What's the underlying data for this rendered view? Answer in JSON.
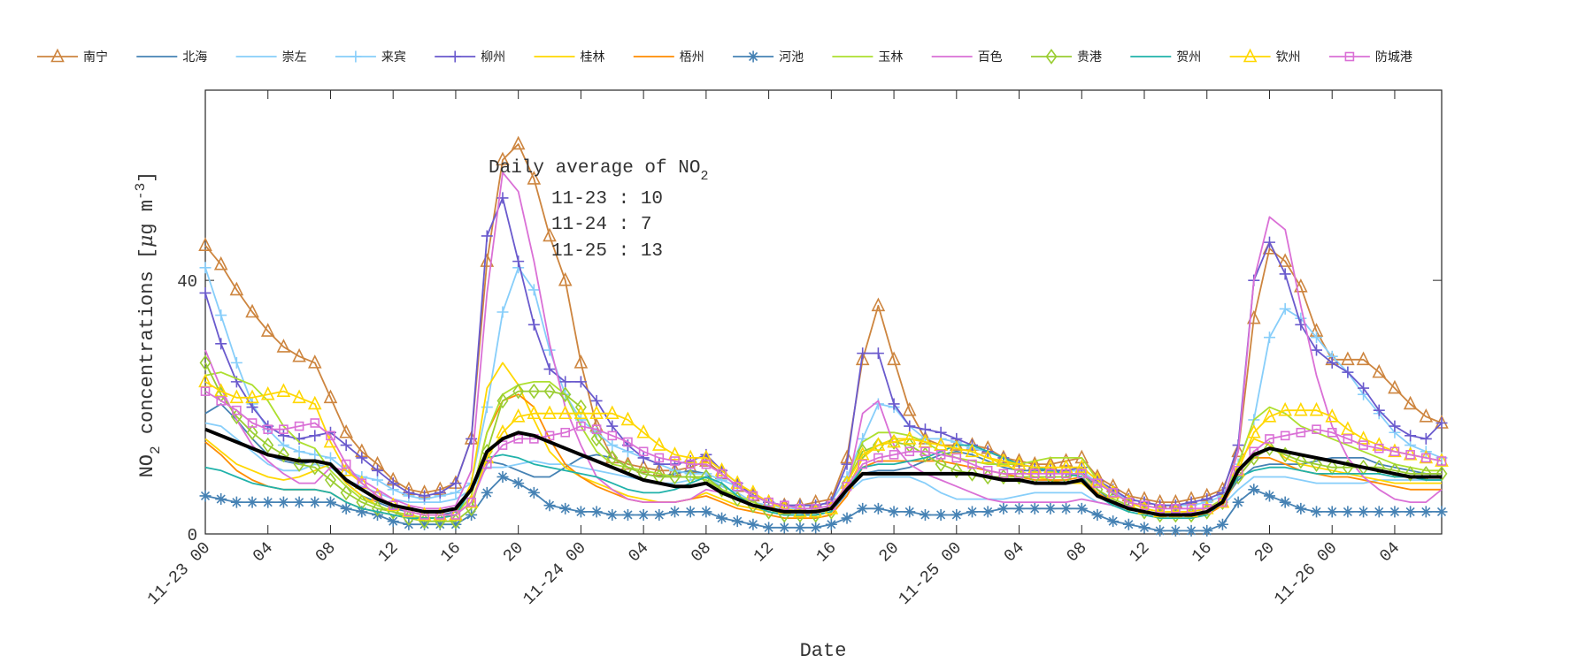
{
  "chart_data": {
    "type": "line",
    "xlabel": "Date",
    "ylabel": "NO2 concentrations [μg m-3]",
    "ylabel_parts": {
      "species": "NO",
      "sub": "2",
      "text": " concentrations [",
      "mu": "μ",
      "unit": "g m",
      "sup": "-3",
      "close": "]"
    },
    "ylim": [
      0,
      70
    ],
    "yticks": [
      0,
      40
    ],
    "x_start": "11-23 00",
    "x_step": "1 hour",
    "xlim_hours": [
      0,
      79
    ],
    "xtick_labels": [
      "11-23 00",
      "04",
      "08",
      "12",
      "16",
      "20",
      "11-24 00",
      "04",
      "08",
      "12",
      "16",
      "20",
      "11-25 00",
      "04",
      "08",
      "12",
      "16",
      "20",
      "11-26 00",
      "04"
    ],
    "grid": false,
    "legend_placement": "top",
    "annotation": {
      "title": "Daily average of NO",
      "title_sub": "2",
      "lines": [
        "11-23 : 10",
        "11-24 : 7",
        "11-25 : 13"
      ]
    },
    "series": [
      {
        "name": "南宁",
        "color": "#CD853F",
        "marker": "triangle",
        "values": [
          45.5,
          42.5,
          38.5,
          35,
          32,
          29.5,
          28,
          27,
          21.5,
          16,
          13,
          11,
          8.5,
          7,
          6.5,
          7,
          8,
          15,
          43,
          59,
          61.5,
          56,
          47,
          40,
          27,
          17,
          12,
          11,
          10.5,
          10,
          10,
          10.5,
          11.5,
          9.5,
          7.5,
          6,
          5,
          4.5,
          4.5,
          5,
          5.5,
          12,
          27.5,
          36,
          27.5,
          19.5,
          15,
          14,
          14,
          14,
          13.5,
          12,
          11.5,
          11,
          11,
          11.5,
          12,
          9,
          7.5,
          6,
          5.5,
          5,
          5,
          5.5,
          6,
          7,
          13,
          34,
          45,
          43,
          39,
          32,
          27.5,
          27.5,
          27.5,
          25.5,
          23,
          20.5,
          18.5,
          17.5
        ]
      },
      {
        "name": "北海",
        "color": "#4682B4",
        "marker": "none",
        "values": [
          19,
          20.5,
          18,
          15,
          12.5,
          11.5,
          11,
          11.5,
          11,
          8,
          6,
          5,
          4,
          3.5,
          3,
          3,
          3.5,
          7,
          11.5,
          11,
          10,
          9,
          9,
          10.5,
          12,
          12.5,
          12,
          10.5,
          9.5,
          9,
          9.5,
          10,
          9.5,
          7,
          5.5,
          4.5,
          3.5,
          3,
          3,
          3,
          3.5,
          6.5,
          9.5,
          10,
          10,
          10.5,
          11.5,
          12.5,
          13,
          12.5,
          11.5,
          10.5,
          10,
          10,
          10,
          10,
          10,
          7,
          5,
          4,
          3.5,
          3,
          3,
          3,
          3.5,
          5,
          8.5,
          10.5,
          11,
          11,
          11,
          11.5,
          12,
          12,
          12,
          11,
          10.5,
          10,
          9.5,
          9.5
        ]
      },
      {
        "name": "崇左",
        "color": "#87CEFA",
        "marker": "none",
        "values": [
          17.5,
          17,
          15,
          13,
          11,
          10,
          10,
          11,
          10.5,
          8.5,
          7.5,
          6.5,
          5.5,
          5,
          5,
          5,
          5.5,
          7,
          10.5,
          10.5,
          11,
          11.5,
          11,
          11,
          10.5,
          10,
          9.5,
          9,
          8.5,
          8,
          8,
          8.5,
          9,
          7.5,
          6.5,
          5,
          4.5,
          4,
          4,
          4,
          4.5,
          6.5,
          8.5,
          9,
          9,
          9,
          8,
          6.5,
          5.5,
          5.5,
          5.5,
          5.5,
          6,
          6.5,
          6.5,
          6.5,
          6.5,
          5,
          4.5,
          4,
          3.5,
          3,
          3,
          3,
          3.5,
          4.5,
          7,
          9,
          9,
          9,
          8.5,
          8,
          8,
          8,
          8,
          8.5,
          8.5,
          8.5,
          8.5,
          8.5
        ]
      },
      {
        "name": "来宾",
        "color": "#87CEFA",
        "marker": "plus",
        "values": [
          42,
          34.5,
          27,
          20.5,
          16.5,
          14,
          13,
          12.5,
          12,
          10,
          9,
          8.5,
          7,
          6,
          5.5,
          6,
          6.5,
          8,
          20,
          35,
          42,
          38.5,
          29,
          22,
          18,
          16,
          14,
          13,
          12,
          11,
          10,
          9.5,
          9.5,
          8.5,
          7.5,
          6,
          5,
          4.5,
          4.5,
          4.5,
          5,
          9,
          15,
          20.5,
          20,
          17,
          15,
          15,
          14.5,
          13.5,
          13,
          12,
          11,
          10.5,
          10,
          10,
          10,
          8,
          6.5,
          5.5,
          5,
          4.5,
          4.5,
          4.5,
          5,
          6,
          11,
          18,
          31,
          35.5,
          34,
          31,
          28,
          25.5,
          22,
          19,
          16,
          14,
          13,
          12
        ]
      },
      {
        "name": "柳州",
        "color": "#6A5ACD",
        "marker": "plus",
        "values": [
          38,
          30,
          24,
          20,
          17,
          15.5,
          15,
          15.5,
          16,
          14,
          12,
          10,
          8,
          6.5,
          6,
          6.5,
          8,
          15,
          47,
          53,
          43,
          33,
          26,
          24,
          24,
          21,
          17,
          14,
          12,
          11,
          11,
          11.5,
          12.5,
          10,
          8,
          6,
          5,
          4.5,
          4.5,
          4.5,
          5,
          11,
          28.5,
          28.5,
          20.5,
          17,
          16.5,
          16,
          15,
          14,
          13,
          12,
          11,
          10.5,
          10,
          10,
          10.5,
          8.5,
          7,
          5.5,
          5,
          4.5,
          4.5,
          5,
          5.5,
          6.5,
          14,
          40,
          46,
          41,
          33,
          29,
          27,
          25.5,
          23,
          19.5,
          17,
          15.5,
          15,
          17.5
        ]
      },
      {
        "name": "桂林",
        "color": "#FFD700",
        "marker": "none",
        "values": [
          15,
          13,
          11,
          10,
          9,
          8.5,
          9,
          10,
          11,
          8,
          6,
          4.5,
          3.5,
          3,
          2.5,
          2.5,
          3,
          8,
          23,
          27,
          23.5,
          18,
          13,
          10.5,
          9,
          8,
          7,
          6,
          5.5,
          5,
          5,
          5.5,
          6.5,
          5.5,
          4.5,
          4,
          3.5,
          3,
          3,
          3,
          3.5,
          7,
          12,
          14,
          15,
          15,
          14.5,
          14,
          13.5,
          13,
          12,
          11,
          10,
          9,
          8.5,
          8,
          8,
          6,
          5,
          4,
          3.5,
          3,
          3,
          3,
          3.5,
          5,
          11,
          15,
          14,
          12,
          11,
          10.5,
          10,
          9.5,
          9,
          8.5,
          8,
          8,
          8,
          8
        ]
      },
      {
        "name": "梧州",
        "color": "#FF8C00",
        "marker": "none",
        "values": [
          14.5,
          12.5,
          10,
          8.5,
          7.5,
          7,
          7,
          7,
          6.5,
          5,
          4,
          3.5,
          3,
          2.5,
          2.5,
          2.5,
          3,
          6,
          16,
          21,
          22,
          20,
          15,
          11,
          9,
          7.5,
          6.5,
          5.5,
          5,
          5,
          5,
          5.5,
          6,
          5,
          4,
          3.5,
          3,
          2.5,
          2.5,
          2.5,
          3,
          6,
          10.5,
          11.5,
          11.5,
          11.5,
          11.5,
          11.5,
          11,
          10.5,
          10,
          9.5,
          9,
          8.5,
          8.5,
          8.5,
          9,
          6.5,
          5,
          4,
          3.5,
          3,
          3,
          3,
          3,
          4.5,
          9,
          12,
          12,
          11,
          10,
          9.5,
          9,
          9,
          8.5,
          8,
          7.5,
          7,
          7,
          7
        ]
      },
      {
        "name": "河池",
        "color": "#4682B4",
        "marker": "asterisk",
        "values": [
          6,
          5.5,
          5,
          5,
          5,
          5,
          5,
          5,
          5,
          4,
          3.5,
          3,
          2,
          1.5,
          1.5,
          1.5,
          1.5,
          3,
          6.5,
          9,
          8,
          6.5,
          4.5,
          4,
          3.5,
          3.5,
          3,
          3,
          3,
          3,
          3.5,
          3.5,
          3.5,
          2.5,
          2,
          1.5,
          1,
          1,
          1,
          1,
          1.5,
          2.5,
          4,
          4,
          3.5,
          3.5,
          3,
          3,
          3,
          3.5,
          3.5,
          4,
          4,
          4,
          4,
          4,
          4,
          3,
          2,
          1.5,
          1,
          0.5,
          0.5,
          0.5,
          0.5,
          1.5,
          5,
          7,
          6,
          5,
          4,
          3.5,
          3.5,
          3.5,
          3.5,
          3.5,
          3.5,
          3.5,
          3.5,
          3.5
        ]
      },
      {
        "name": "玉林",
        "color": "#ADDF2F",
        "marker": "none",
        "values": [
          25,
          25.5,
          24.5,
          23.5,
          21,
          17,
          14.5,
          13.5,
          10,
          7.5,
          5.5,
          4.5,
          3.5,
          3,
          2.5,
          2.5,
          3,
          6,
          16,
          22,
          23.5,
          24,
          24,
          22,
          17,
          13,
          11,
          10.5,
          10,
          9.5,
          9,
          9,
          8.5,
          7,
          6,
          5,
          4,
          3,
          3,
          3,
          3.5,
          8,
          14.5,
          16,
          16,
          15.5,
          14.5,
          13,
          12,
          11.5,
          11,
          11,
          11,
          11.5,
          12,
          12,
          12,
          8.5,
          6.5,
          5,
          4,
          3.5,
          3.5,
          3.5,
          4,
          5.5,
          11,
          18,
          20,
          19,
          17,
          16,
          15,
          14,
          13,
          12,
          11,
          10.5,
          10,
          10
        ]
      },
      {
        "name": "百色",
        "color": "#DA70D6",
        "marker": "none",
        "values": [
          29,
          23,
          18,
          14,
          11.5,
          9.5,
          8,
          8,
          10.5,
          10,
          8.5,
          7,
          5.5,
          4.5,
          4,
          4,
          4.5,
          10,
          38,
          57,
          54,
          43,
          30,
          20,
          14,
          9,
          7,
          5.5,
          5,
          5,
          5,
          5.5,
          7,
          6.5,
          5.5,
          4.5,
          3.5,
          3,
          3,
          3.5,
          4,
          7,
          19,
          21,
          14,
          11,
          9.5,
          8.5,
          7.5,
          6.5,
          5.5,
          5,
          5,
          5,
          5,
          5,
          5.5,
          5,
          4.5,
          4,
          3.5,
          3,
          3,
          3.5,
          4,
          5,
          13,
          40,
          50,
          48,
          36,
          25,
          17,
          12,
          9,
          7,
          5.5,
          5,
          5,
          7
        ]
      },
      {
        "name": "贵港",
        "color": "#9ACD32",
        "marker": "diamond",
        "values": [
          27,
          22,
          18.5,
          16,
          14,
          12.5,
          11,
          10.5,
          8.5,
          6.5,
          5,
          4,
          3.5,
          2.5,
          2,
          2,
          2,
          4,
          13,
          21,
          22.5,
          22.5,
          22.5,
          22,
          20,
          15,
          12,
          10.5,
          9.5,
          9,
          9,
          9,
          9,
          7,
          5.5,
          4.5,
          3.5,
          3,
          3,
          3,
          3.5,
          8,
          13,
          14,
          14.5,
          14,
          12.5,
          11,
          10,
          9.5,
          9,
          9,
          9,
          9,
          9,
          9,
          9.5,
          7,
          5.5,
          4.5,
          3.5,
          3,
          3,
          3,
          3.5,
          5,
          9,
          12,
          13.5,
          12.5,
          11.5,
          11,
          10.5,
          10.5,
          10.5,
          10.5,
          10,
          9.5,
          9.5,
          9.5
        ]
      },
      {
        "name": "贺州",
        "color": "#20B2AA",
        "marker": "none",
        "values": [
          10.5,
          10,
          9,
          8,
          7.5,
          7,
          7,
          7,
          6.5,
          5,
          4,
          3.5,
          3,
          2.5,
          2.5,
          2.5,
          3,
          7,
          12,
          12.5,
          12,
          11,
          10.5,
          10,
          9.5,
          9,
          8,
          7,
          6.5,
          6.5,
          7,
          8,
          9,
          8,
          6,
          4.5,
          3.5,
          3,
          3,
          3,
          3.5,
          7,
          10.5,
          11,
          11,
          11.5,
          12,
          13,
          14,
          14,
          13,
          12,
          11,
          10.5,
          10,
          9.5,
          9,
          6,
          4.5,
          3.5,
          3,
          2.5,
          2.5,
          2.5,
          3,
          5,
          9,
          10,
          10.5,
          10.5,
          10,
          9.5,
          9.5,
          9.5,
          9.5,
          9.5,
          9,
          9,
          8.5,
          8.5
        ]
      },
      {
        "name": "钦州",
        "color": "#FFD700",
        "marker": "triangle",
        "values": [
          24,
          22.5,
          21.5,
          21.5,
          22,
          22.5,
          21.5,
          20.5,
          14.5,
          10,
          8,
          6,
          4.5,
          3.5,
          3,
          3,
          3,
          5,
          12,
          16,
          18.5,
          19,
          19,
          19,
          19,
          19,
          19,
          18,
          16,
          14,
          12.5,
          12,
          12,
          10,
          8,
          6.5,
          5,
          4,
          3.5,
          3.5,
          4,
          8,
          12.5,
          14,
          14.5,
          15,
          14.5,
          14,
          13.5,
          13,
          12,
          11.5,
          11,
          10.5,
          10.5,
          10.5,
          10.5,
          8.5,
          6.5,
          5,
          4,
          3.5,
          3.5,
          3.5,
          4,
          5,
          10,
          16,
          18.5,
          19.5,
          19.5,
          19.5,
          18.5,
          16.5,
          15,
          14,
          13,
          12.5,
          12,
          11.5
        ]
      },
      {
        "name": "防城港",
        "color": "#DA70D6",
        "marker": "square",
        "values": [
          22.5,
          21,
          19.5,
          17.5,
          16.5,
          16.5,
          17,
          17.5,
          15.5,
          11,
          8,
          6,
          4.5,
          3.5,
          3,
          3,
          3,
          5,
          11,
          14,
          15,
          15,
          15.5,
          16,
          17,
          16.5,
          15.5,
          14.5,
          13,
          12,
          11.5,
          11,
          11,
          9.5,
          7.5,
          6,
          5,
          4.5,
          4,
          4,
          4.5,
          7.5,
          11,
          12,
          12.5,
          13,
          13,
          12.5,
          12,
          11,
          10,
          9.5,
          9.5,
          9.5,
          9.5,
          9.5,
          9.5,
          8,
          6.5,
          5,
          4.5,
          4,
          4,
          4,
          4,
          5,
          10,
          13,
          15,
          15.5,
          16,
          16.5,
          16,
          15,
          14,
          13.5,
          13,
          12.5,
          12,
          11.5
        ]
      },
      {
        "name": "",
        "color": "#000000",
        "marker": "none",
        "thick": true,
        "values": [
          16.5,
          15.5,
          14.5,
          13.5,
          12.5,
          12,
          11.5,
          11.5,
          11,
          8.5,
          7,
          5.5,
          4.5,
          4,
          3.5,
          3.5,
          4,
          7,
          13,
          15,
          16,
          15.5,
          14.5,
          13.5,
          12.5,
          11.5,
          10.5,
          9.5,
          8.5,
          8,
          7.5,
          7.5,
          8,
          6.5,
          5.5,
          4.5,
          4,
          3.5,
          3.5,
          3.5,
          4,
          7,
          9.5,
          9.5,
          9.5,
          9.5,
          9.5,
          9.5,
          9.5,
          9.5,
          9,
          8.5,
          8.5,
          8,
          8,
          8,
          8.5,
          6,
          5,
          4,
          3.5,
          3,
          3,
          3,
          3.5,
          5,
          10,
          12.5,
          13.5,
          13,
          12.5,
          12,
          11.5,
          11,
          10.5,
          10,
          9.5,
          9,
          9,
          9
        ]
      }
    ]
  }
}
